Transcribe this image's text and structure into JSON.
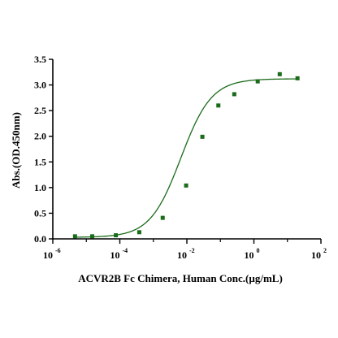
{
  "chart_data": {
    "type": "scatter",
    "xlabel": "ACVR2B Fc Chimera, Human Conc.(µg/mL)",
    "ylabel": "Abs.(OD.450nm)",
    "xscale": "log",
    "xlim_exponent": [
      -6,
      2
    ],
    "ylim": [
      0,
      3.5
    ],
    "x_tick_base": "10",
    "x_ticks": [
      {
        "exp": -6,
        "label": "-6"
      },
      {
        "exp": -4,
        "label": "-4"
      },
      {
        "exp": -2,
        "label": "-2"
      },
      {
        "exp": 0,
        "label": "0"
      },
      {
        "exp": 2,
        "label": "2"
      }
    ],
    "y_ticks": [
      "0.0",
      "0.5",
      "1.0",
      "1.5",
      "2.0",
      "2.5",
      "3.0",
      "3.5"
    ],
    "y_tick_values": [
      0,
      0.5,
      1.0,
      1.5,
      2.0,
      2.5,
      3.0,
      3.5
    ],
    "series": [
      {
        "x": [
          4.6e-06,
          1.5e-05,
          7.6e-05,
          0.00038,
          0.0019,
          0.0095,
          0.029,
          0.087,
          0.26,
          1.3,
          5.9,
          20
        ],
        "y": [
          0.05,
          0.05,
          0.07,
          0.13,
          0.41,
          1.04,
          1.99,
          2.6,
          2.82,
          3.07,
          3.21,
          3.13
        ]
      }
    ],
    "fit": {
      "bottom": 0.03,
      "top": 3.12,
      "ec50": 0.0066,
      "hill": 0.95
    },
    "colors": {
      "marker": "#1a6b1a",
      "curve": "#1a6b1a",
      "axis": "#000000"
    }
  }
}
